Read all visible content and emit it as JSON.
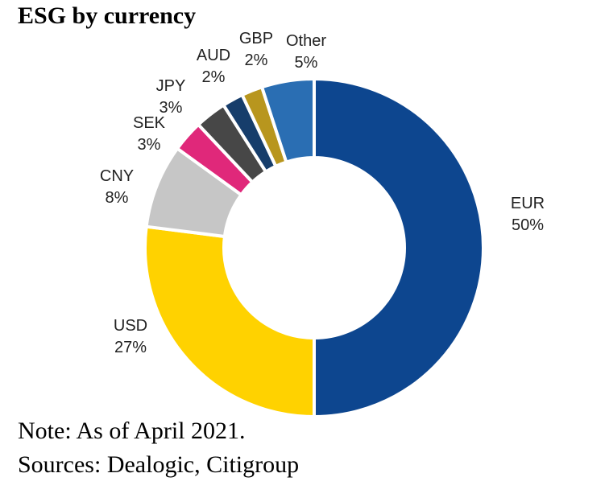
{
  "title": "ESG by currency",
  "chart_data": {
    "type": "pie",
    "variant": "donut",
    "slices": [
      {
        "label": "EUR",
        "value": 50,
        "value_label": "50%",
        "color": "#0d468f"
      },
      {
        "label": "USD",
        "value": 27,
        "value_label": "27%",
        "color": "#ffd200"
      },
      {
        "label": "CNY",
        "value": 8,
        "value_label": "8%",
        "color": "#c6c6c6"
      },
      {
        "label": "SEK",
        "value": 3,
        "value_label": "3%",
        "color": "#e0287a"
      },
      {
        "label": "JPY",
        "value": 3,
        "value_label": "3%",
        "color": "#474747"
      },
      {
        "label": "AUD",
        "value": 2,
        "value_label": "2%",
        "color": "#163d6b"
      },
      {
        "label": "GBP",
        "value": 2,
        "value_label": "2%",
        "color": "#b8961e"
      },
      {
        "label": "Other",
        "value": 5,
        "value_label": "5%",
        "color": "#2a6eb3"
      }
    ]
  },
  "notes": {
    "note": "Note: As of April 2021.",
    "sources": "Sources: Dealogic, Citigroup"
  }
}
